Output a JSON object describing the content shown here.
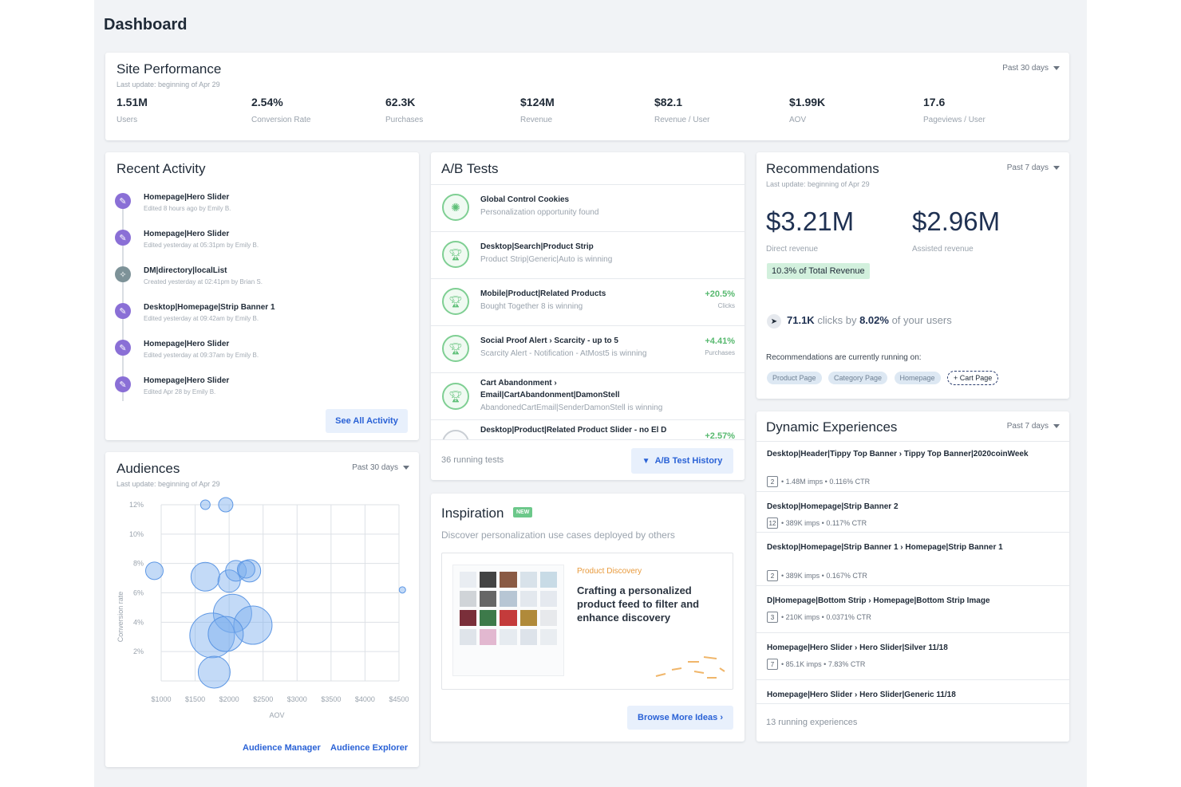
{
  "page": {
    "title": "Dashboard"
  },
  "site_performance": {
    "title": "Site Performance",
    "last_update": "Last update: beginning of Apr 29",
    "range": "Past 30 days",
    "metrics": [
      {
        "value": "1.51M",
        "label": "Users"
      },
      {
        "value": "2.54%",
        "label": "Conversion Rate"
      },
      {
        "value": "62.3K",
        "label": "Purchases"
      },
      {
        "value": "$124M",
        "label": "Revenue"
      },
      {
        "value": "$82.1",
        "label": "Revenue / User"
      },
      {
        "value": "$1.99K",
        "label": "AOV"
      },
      {
        "value": "17.6",
        "label": "Pageviews / User"
      }
    ]
  },
  "recent_activity": {
    "title": "Recent Activity",
    "items": [
      {
        "title": "Homepage|Hero Slider",
        "meta": "Edited 8 hours ago by Emily B.",
        "icon": "pencil-icon"
      },
      {
        "title": "Homepage|Hero Slider",
        "meta": "Edited yesterday at 05:31pm by Emily B.",
        "icon": "pencil-icon"
      },
      {
        "title": "DM|directory|localList",
        "meta": "Created yesterday at 02:41pm by Brian S.",
        "icon": "wand-icon"
      },
      {
        "title": "Desktop|Homepage|Strip Banner 1",
        "meta": "Edited yesterday at 09:42am by Emily B.",
        "icon": "pencil-icon"
      },
      {
        "title": "Homepage|Hero Slider",
        "meta": "Edited yesterday at 09:37am by Emily B.",
        "icon": "pencil-icon"
      },
      {
        "title": "Homepage|Hero Slider",
        "meta": "Edited Apr 28 by Emily B.",
        "icon": "pencil-icon"
      }
    ],
    "see_all": "See All Activity"
  },
  "ab_tests": {
    "title": "A/B Tests",
    "tests": [
      {
        "title": "Global Control Cookies",
        "sub": "Personalization opportunity found",
        "lift": "",
        "metric": ""
      },
      {
        "title": "Desktop|Search|Product Strip",
        "sub": "Product Strip|Generic|Auto is winning",
        "lift": "",
        "metric": ""
      },
      {
        "title": "Mobile|Product|Related Products",
        "sub": "Bought Together 8 is winning",
        "lift": "+20.5%",
        "metric": "Clicks"
      },
      {
        "title": "Social Proof Alert › Scarcity - up to 5",
        "sub": "Scarcity Alert - Notification - AtMost5 is winning",
        "lift": "+4.41%",
        "metric": "Purchases"
      },
      {
        "title": "Cart Abandonment ›",
        "title2": "Email|CartAbandonment|DamonStell",
        "sub": "AbandonedCartEmail|SenderDamonStell is winning",
        "lift": "",
        "metric": ""
      },
      {
        "title": "Desktop|Product|Related Product Slider - no El D",
        "sub": "",
        "lift": "+2.57%",
        "metric": ""
      }
    ],
    "running": "36 running tests",
    "history": "A/B Test History"
  },
  "recommendations": {
    "title": "Recommendations",
    "last_update": "Last update: beginning of Apr 29",
    "range": "Past 7 days",
    "direct_value": "$3.21M",
    "direct_label": "Direct revenue",
    "assisted_value": "$2.96M",
    "assisted_label": "Assisted revenue",
    "share_badge": "10.3% of Total Revenue",
    "clicks_value": "71.1K",
    "clicks_mid": "clicks by",
    "clicks_pct": "8.02%",
    "clicks_tail": "of your users",
    "running_on": "Recommendations are currently running on:",
    "pages": [
      "Product Page",
      "Category Page",
      "Homepage"
    ],
    "add_page": "+ Cart Page"
  },
  "audiences": {
    "title": "Audiences",
    "last_update": "Last update: beginning of Apr 29",
    "range": "Past 30 days",
    "manager_link": "Audience Manager",
    "explorer_link": "Audience Explorer"
  },
  "chart_data": {
    "type": "scatter",
    "xlabel": "AOV",
    "ylabel": "Conversion rate",
    "xlim": [
      1000,
      4500
    ],
    "ylim": [
      0,
      12
    ],
    "x_ticks": [
      "$1000",
      "$1500",
      "$2000",
      "$2500",
      "$3000",
      "$3500",
      "$4000",
      "$4500"
    ],
    "y_ticks": [
      "2%",
      "4%",
      "6%",
      "8%",
      "10%",
      "12%"
    ],
    "points": [
      {
        "x": 1650,
        "y": 12.0,
        "r": 6
      },
      {
        "x": 1950,
        "y": 12.0,
        "r": 9
      },
      {
        "x": 900,
        "y": 7.5,
        "r": 11
      },
      {
        "x": 1650,
        "y": 7.1,
        "r": 18
      },
      {
        "x": 2000,
        "y": 6.8,
        "r": 14
      },
      {
        "x": 2100,
        "y": 7.5,
        "r": 13
      },
      {
        "x": 2300,
        "y": 7.5,
        "r": 14
      },
      {
        "x": 2250,
        "y": 7.6,
        "r": 11
      },
      {
        "x": 2050,
        "y": 4.6,
        "r": 24
      },
      {
        "x": 2350,
        "y": 3.8,
        "r": 24
      },
      {
        "x": 1750,
        "y": 3.1,
        "r": 28
      },
      {
        "x": 1950,
        "y": 3.2,
        "r": 22
      },
      {
        "x": 1780,
        "y": 0.6,
        "r": 20
      },
      {
        "x": 4550,
        "y": 6.2,
        "r": 4
      }
    ]
  },
  "inspiration": {
    "title": "Inspiration",
    "badge": "NEW",
    "subtitle": "Discover personalization use cases deployed by others",
    "category": "Product Discovery",
    "headline": "Crafting a personalized product feed to filter and enhance discovery",
    "browse": "Browse More Ideas ›"
  },
  "dynamic_experiences": {
    "title": "Dynamic Experiences",
    "range": "Past 7 days",
    "items": [
      {
        "title": "Desktop|Header|Tippy Top Banner › Tippy Top Banner|2020coinWeek",
        "count": "2",
        "meta": "• 1.48M imps • 0.116% CTR"
      },
      {
        "title": "Desktop|Homepage|Strip Banner 2",
        "count": "12",
        "meta": "• 389K imps • 0.117% CTR"
      },
      {
        "title": "Desktop|Homepage|Strip Banner 1 › Homepage|Strip Banner 1",
        "count": "2",
        "meta": "• 389K imps • 0.167% CTR"
      },
      {
        "title": "D|Homepage|Bottom Strip › Homepage|Bottom Strip Image",
        "count": "3",
        "meta": "• 210K imps • 0.0371% CTR"
      },
      {
        "title": "Homepage|Hero Slider › Hero Slider|Silver 11/18",
        "count": "7",
        "meta": "• 85.1K imps • 7.83% CTR"
      },
      {
        "title": "Homepage|Hero Slider › Hero Slider|Generic 11/18",
        "count": "",
        "meta": ""
      }
    ],
    "running": "13 running experiences"
  },
  "colors": {
    "accent_blue": "#2a62d6",
    "activity_purple": "#8a6fd6",
    "success_green": "#57b96f",
    "badge_green": "#6cc88a",
    "background": "#f1f3f6"
  }
}
